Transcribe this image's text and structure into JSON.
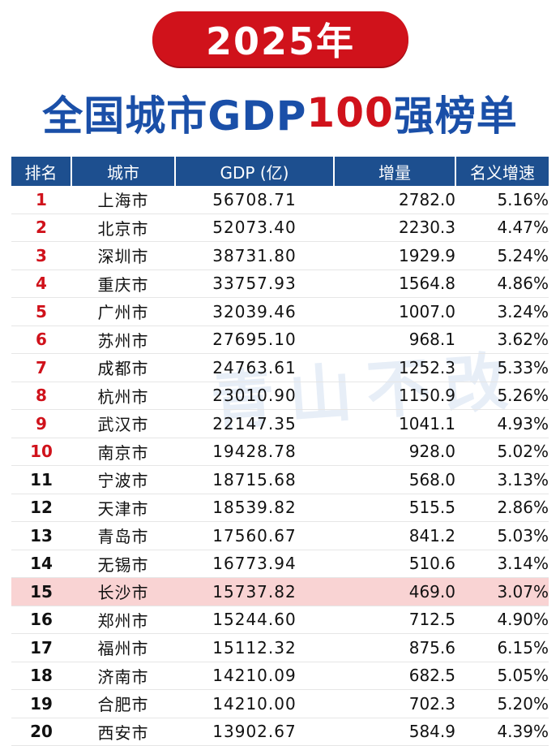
{
  "banner": {
    "year": "2025年"
  },
  "title": {
    "part1": "全国城市GDP",
    "part2": "100",
    "part3": "强榜单"
  },
  "watermark": "青山不改",
  "table": {
    "headers": [
      "排名",
      "城市",
      "GDP (亿)",
      "增量",
      "名义增速"
    ],
    "highlight_rank": "15",
    "rows": [
      {
        "rank": "1",
        "city": "上海市",
        "gdp": "56708.71",
        "increase": "2782.0",
        "rate": "5.16%"
      },
      {
        "rank": "2",
        "city": "北京市",
        "gdp": "52073.40",
        "increase": "2230.3",
        "rate": "4.47%"
      },
      {
        "rank": "3",
        "city": "深圳市",
        "gdp": "38731.80",
        "increase": "1929.9",
        "rate": "5.24%"
      },
      {
        "rank": "4",
        "city": "重庆市",
        "gdp": "33757.93",
        "increase": "1564.8",
        "rate": "4.86%"
      },
      {
        "rank": "5",
        "city": "广州市",
        "gdp": "32039.46",
        "increase": "1007.0",
        "rate": "3.24%"
      },
      {
        "rank": "6",
        "city": "苏州市",
        "gdp": "27695.10",
        "increase": "968.1",
        "rate": "3.62%"
      },
      {
        "rank": "7",
        "city": "成都市",
        "gdp": "24763.61",
        "increase": "1252.3",
        "rate": "5.33%"
      },
      {
        "rank": "8",
        "city": "杭州市",
        "gdp": "23010.90",
        "increase": "1150.9",
        "rate": "5.26%"
      },
      {
        "rank": "9",
        "city": "武汉市",
        "gdp": "22147.35",
        "increase": "1041.1",
        "rate": "4.93%"
      },
      {
        "rank": "10",
        "city": "南京市",
        "gdp": "19428.78",
        "increase": "928.0",
        "rate": "5.02%"
      },
      {
        "rank": "11",
        "city": "宁波市",
        "gdp": "18715.68",
        "increase": "568.0",
        "rate": "3.13%"
      },
      {
        "rank": "12",
        "city": "天津市",
        "gdp": "18539.82",
        "increase": "515.5",
        "rate": "2.86%"
      },
      {
        "rank": "13",
        "city": "青岛市",
        "gdp": "17560.67",
        "increase": "841.2",
        "rate": "5.03%"
      },
      {
        "rank": "14",
        "city": "无锡市",
        "gdp": "16773.94",
        "increase": "510.6",
        "rate": "3.14%"
      },
      {
        "rank": "15",
        "city": "长沙市",
        "gdp": "15737.82",
        "increase": "469.0",
        "rate": "3.07%"
      },
      {
        "rank": "16",
        "city": "郑州市",
        "gdp": "15244.60",
        "increase": "712.5",
        "rate": "4.90%"
      },
      {
        "rank": "17",
        "city": "福州市",
        "gdp": "15112.32",
        "increase": "875.6",
        "rate": "6.15%"
      },
      {
        "rank": "18",
        "city": "济南市",
        "gdp": "14210.09",
        "increase": "682.5",
        "rate": "5.05%"
      },
      {
        "rank": "19",
        "city": "合肥市",
        "gdp": "14210.00",
        "increase": "702.3",
        "rate": "5.20%"
      },
      {
        "rank": "20",
        "city": "西安市",
        "gdp": "13902.67",
        "increase": "584.9",
        "rate": "4.39%"
      }
    ]
  }
}
